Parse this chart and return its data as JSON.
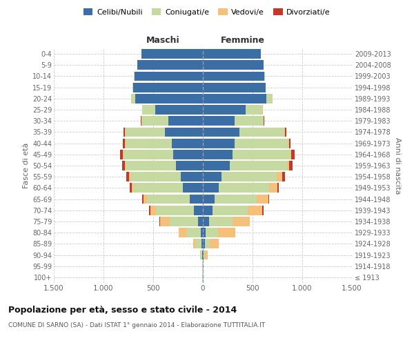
{
  "age_groups": [
    "100+",
    "95-99",
    "90-94",
    "85-89",
    "80-84",
    "75-79",
    "70-74",
    "65-69",
    "60-64",
    "55-59",
    "50-54",
    "45-49",
    "40-44",
    "35-39",
    "30-34",
    "25-29",
    "20-24",
    "15-19",
    "10-14",
    "5-9",
    "0-4"
  ],
  "birth_years": [
    "≤ 1913",
    "1914-1918",
    "1919-1923",
    "1924-1928",
    "1929-1933",
    "1934-1938",
    "1939-1943",
    "1944-1948",
    "1949-1953",
    "1954-1958",
    "1959-1963",
    "1964-1968",
    "1969-1973",
    "1974-1978",
    "1979-1983",
    "1984-1988",
    "1989-1993",
    "1994-1998",
    "1999-2003",
    "2004-2008",
    "2009-2013"
  ],
  "male_celibe": [
    2,
    2,
    5,
    15,
    20,
    50,
    90,
    130,
    200,
    220,
    270,
    300,
    310,
    380,
    350,
    480,
    680,
    700,
    690,
    660,
    620
  ],
  "male_coniugato": [
    2,
    3,
    20,
    60,
    150,
    280,
    380,
    430,
    500,
    510,
    510,
    500,
    470,
    400,
    270,
    130,
    40,
    5,
    2,
    1,
    0
  ],
  "male_vedovo": [
    0,
    0,
    5,
    20,
    70,
    100,
    60,
    35,
    15,
    10,
    5,
    5,
    3,
    2,
    1,
    0,
    0,
    0,
    0,
    0,
    0
  ],
  "male_divorziato": [
    0,
    0,
    0,
    2,
    3,
    5,
    15,
    15,
    18,
    30,
    30,
    25,
    20,
    15,
    5,
    2,
    0,
    0,
    0,
    0,
    0
  ],
  "female_nubile": [
    2,
    2,
    8,
    20,
    25,
    60,
    100,
    120,
    160,
    190,
    270,
    300,
    320,
    370,
    320,
    430,
    640,
    630,
    620,
    610,
    580
  ],
  "female_coniugata": [
    2,
    3,
    10,
    50,
    130,
    240,
    350,
    420,
    510,
    550,
    580,
    580,
    540,
    450,
    290,
    170,
    60,
    5,
    2,
    1,
    0
  ],
  "female_vedova": [
    2,
    2,
    30,
    90,
    170,
    170,
    150,
    120,
    80,
    60,
    20,
    10,
    5,
    3,
    2,
    1,
    0,
    0,
    0,
    0,
    0
  ],
  "female_divorziata": [
    0,
    0,
    0,
    2,
    3,
    5,
    10,
    10,
    15,
    25,
    30,
    35,
    20,
    15,
    5,
    2,
    0,
    0,
    0,
    0,
    0
  ],
  "colors": {
    "celibe": "#3a6ea5",
    "coniugato": "#c5d9a0",
    "vedovo": "#f5c07a",
    "divorziato": "#c0392b"
  },
  "xlim": 1500,
  "xticks": [
    -1500,
    -1000,
    -500,
    0,
    500,
    1000,
    1500
  ],
  "xticklabels": [
    "1.500",
    "1.000",
    "500",
    "0",
    "500",
    "1.000",
    "1.500"
  ],
  "title": "Popolazione per età, sesso e stato civile - 2014",
  "subtitle": "COMUNE DI SARNO (SA) - Dati ISTAT 1° gennaio 2014 - Elaborazione TUTTITALIA.IT",
  "ylabel": "Fasce di età",
  "ylabel2": "Anni di nascita",
  "label_maschi": "Maschi",
  "label_femmine": "Femmine",
  "legend_labels": [
    "Celibi/Nubili",
    "Coniugati/e",
    "Vedovi/e",
    "Divorziati/e"
  ],
  "bg_color": "#ffffff",
  "grid_color": "#cccccc",
  "bar_height": 0.85
}
